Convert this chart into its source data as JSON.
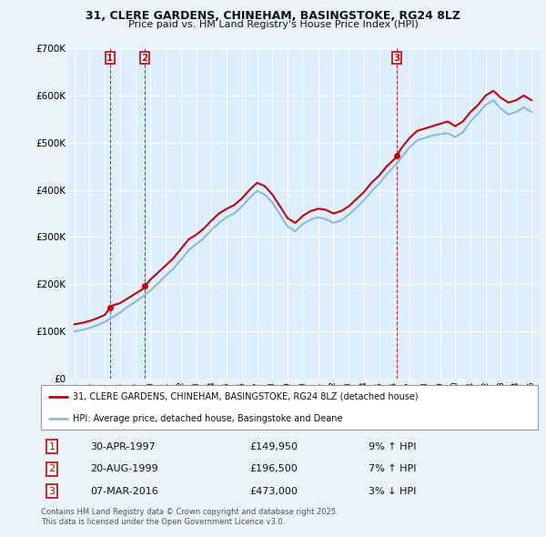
{
  "title_line1": "31, CLERE GARDENS, CHINEHAM, BASINGSTOKE, RG24 8LZ",
  "title_line2": "Price paid vs. HM Land Registry's House Price Index (HPI)",
  "background_color": "#e8f4f8",
  "plot_bg_color": "#ddeeff",
  "grid_color": "#ffffff",
  "red_line_color": "#cc0000",
  "blue_line_color": "#88bbdd",
  "ylim": [
    0,
    700000
  ],
  "yticks": [
    0,
    100000,
    200000,
    300000,
    400000,
    500000,
    600000,
    700000
  ],
  "ytick_labels": [
    "£0",
    "£100K",
    "£200K",
    "£300K",
    "£400K",
    "£500K",
    "£600K",
    "£700K"
  ],
  "xlim_start": 1994.6,
  "xlim_end": 2025.6,
  "sales": [
    {
      "num": 1,
      "year_x": 1997.33,
      "price": 149950,
      "date": "30-APR-1997",
      "pct": "9%",
      "dir": "↑"
    },
    {
      "num": 2,
      "year_x": 1999.63,
      "price": 196500,
      "date": "20-AUG-1999",
      "pct": "7%",
      "dir": "↑"
    },
    {
      "num": 3,
      "year_x": 2016.17,
      "price": 473000,
      "date": "07-MAR-2016",
      "pct": "3%",
      "dir": "↓"
    }
  ],
  "red_line_data": {
    "x": [
      1995.0,
      1995.5,
      1996.0,
      1996.5,
      1997.0,
      1997.33,
      1997.5,
      1998.0,
      1998.5,
      1999.0,
      1999.5,
      1999.63,
      2000.0,
      2000.5,
      2001.0,
      2001.5,
      2002.0,
      2002.5,
      2003.0,
      2003.5,
      2004.0,
      2004.5,
      2005.0,
      2005.5,
      2006.0,
      2006.5,
      2007.0,
      2007.5,
      2008.0,
      2008.5,
      2009.0,
      2009.5,
      2010.0,
      2010.5,
      2011.0,
      2011.5,
      2012.0,
      2012.5,
      2013.0,
      2013.5,
      2014.0,
      2014.5,
      2015.0,
      2015.5,
      2016.0,
      2016.17,
      2016.5,
      2017.0,
      2017.5,
      2018.0,
      2018.5,
      2019.0,
      2019.5,
      2020.0,
      2020.5,
      2021.0,
      2021.5,
      2022.0,
      2022.5,
      2023.0,
      2023.5,
      2024.0,
      2024.5,
      2025.0
    ],
    "y": [
      115000,
      118000,
      122000,
      128000,
      135000,
      149950,
      155000,
      160000,
      170000,
      180000,
      190000,
      196500,
      210000,
      225000,
      240000,
      255000,
      275000,
      295000,
      305000,
      318000,
      335000,
      350000,
      360000,
      368000,
      382000,
      400000,
      415000,
      408000,
      390000,
      365000,
      340000,
      330000,
      345000,
      355000,
      360000,
      358000,
      350000,
      355000,
      365000,
      380000,
      395000,
      415000,
      430000,
      450000,
      465000,
      473000,
      490000,
      510000,
      525000,
      530000,
      535000,
      540000,
      545000,
      535000,
      545000,
      565000,
      580000,
      600000,
      610000,
      595000,
      585000,
      590000,
      600000,
      590000
    ]
  },
  "blue_line_data": {
    "x": [
      1995.0,
      1995.5,
      1996.0,
      1996.5,
      1997.0,
      1997.5,
      1998.0,
      1998.5,
      1999.0,
      1999.5,
      2000.0,
      2000.5,
      2001.0,
      2001.5,
      2002.0,
      2002.5,
      2003.0,
      2003.5,
      2004.0,
      2004.5,
      2005.0,
      2005.5,
      2006.0,
      2006.5,
      2007.0,
      2007.5,
      2008.0,
      2008.5,
      2009.0,
      2009.5,
      2010.0,
      2010.5,
      2011.0,
      2011.5,
      2012.0,
      2012.5,
      2013.0,
      2013.5,
      2014.0,
      2014.5,
      2015.0,
      2015.5,
      2016.0,
      2016.5,
      2017.0,
      2017.5,
      2018.0,
      2018.5,
      2019.0,
      2019.5,
      2020.0,
      2020.5,
      2021.0,
      2021.5,
      2022.0,
      2022.5,
      2023.0,
      2023.5,
      2024.0,
      2024.5,
      2025.0
    ],
    "y": [
      100000,
      103000,
      107000,
      113000,
      120000,
      130000,
      140000,
      152000,
      163000,
      174000,
      187000,
      202000,
      218000,
      233000,
      252000,
      272000,
      285000,
      298000,
      315000,
      330000,
      342000,
      350000,
      365000,
      383000,
      398000,
      390000,
      373000,
      348000,
      322000,
      312000,
      328000,
      337000,
      342000,
      338000,
      330000,
      335000,
      347000,
      362000,
      378000,
      397000,
      413000,
      433000,
      450000,
      470000,
      490000,
      505000,
      510000,
      515000,
      518000,
      520000,
      512000,
      522000,
      545000,
      562000,
      580000,
      590000,
      572000,
      560000,
      565000,
      575000,
      565000
    ]
  },
  "legend_entries": [
    {
      "color": "#cc0000",
      "label": "31, CLERE GARDENS, CHINEHAM, BASINGSTOKE, RG24 8LZ (detached house)"
    },
    {
      "color": "#88bbdd",
      "label": "HPI: Average price, detached house, Basingstoke and Deane"
    }
  ],
  "footer_text": "Contains HM Land Registry data © Crown copyright and database right 2025.\nThis data is licensed under the Open Government Licence v3.0.",
  "sale_marker_color": "#cc0000",
  "vline_color": "#cc0000"
}
